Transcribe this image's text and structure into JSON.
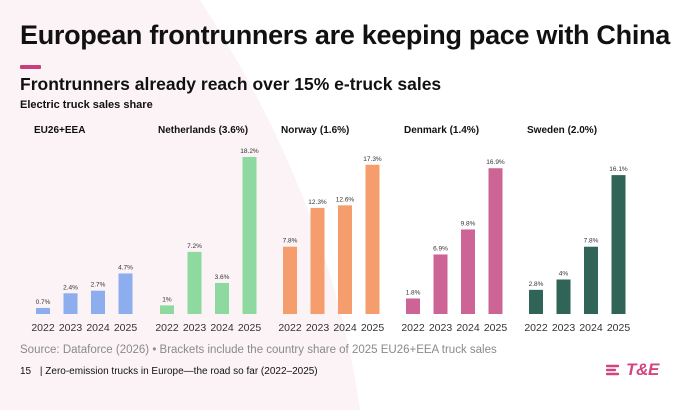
{
  "header": {
    "title": "European frontrunners are keeping pace with China",
    "subtitle": "Frontrunners already reach over 15% e-truck sales",
    "ylabel": "Electric truck sales share"
  },
  "source": "Source: Dataforce (2026) • Brackets include the country share of 2025 EU26+EEA truck sales",
  "footer": {
    "page": "15",
    "text": "| Zero-emission trucks in Europe—the road so far (2022–2025)"
  },
  "logo": {
    "text": "T&E",
    "accent": "#d4457f"
  },
  "colors": {
    "accent": "#c83f7c"
  },
  "chart_data": {
    "type": "bar",
    "categories": [
      "2022",
      "2023",
      "2024",
      "2025"
    ],
    "ylim": [
      0,
      18.2
    ],
    "grid": false,
    "panels": [
      {
        "title": "EU26+EEA",
        "color": "#8cadee",
        "values": [
          0.7,
          2.4,
          2.7,
          4.7
        ],
        "labels": [
          "0.7%",
          "2.4%",
          "2.7%",
          "4.7%"
        ]
      },
      {
        "title": "Netherlands (3.6%)",
        "color": "#8ed9a0",
        "values": [
          1,
          7.2,
          3.6,
          18.2
        ],
        "labels": [
          "1%",
          "7.2%",
          "3.6%",
          "18.2%"
        ]
      },
      {
        "title": "Norway (1.6%)",
        "color": "#f69d6d",
        "values": [
          7.8,
          12.3,
          12.6,
          17.3
        ],
        "labels": [
          "7.8%",
          "12.3%",
          "12.6%",
          "17.3%"
        ]
      },
      {
        "title": "Denmark (1.4%)",
        "color": "#cc6595",
        "values": [
          1.8,
          6.9,
          9.8,
          16.9
        ],
        "labels": [
          "1.8%",
          "6.9%",
          "9.8%",
          "16.9%"
        ]
      },
      {
        "title": "Sweden (2.0%)",
        "color": "#2f6456",
        "values": [
          2.8,
          4,
          7.8,
          16.1
        ],
        "labels": [
          "2.8%",
          "4%",
          "7.8%",
          "16.1%"
        ]
      }
    ]
  }
}
